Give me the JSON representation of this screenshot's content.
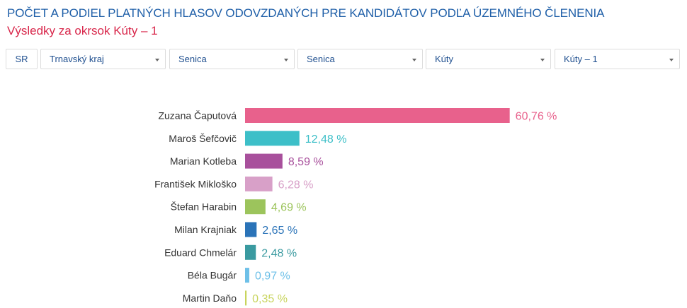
{
  "header": {
    "title": "POČET A PODIEL PLATNÝCH HLASOV ODOVZDANÝCH PRE KANDIDÁTOV PODĽA ÚZEMNÉHO ČLENENIA",
    "subtitle": "Výsledky za okrsok Kúty – 1"
  },
  "filters": {
    "country": "SR",
    "region": "Trnavský kraj",
    "district": "Senica",
    "municipality_area": "Senica",
    "municipality": "Kúty",
    "precinct": "Kúty – 1"
  },
  "chart_data": {
    "type": "bar",
    "orientation": "horizontal",
    "categories": [
      "Zuzana Čaputová",
      "Maroš Šefčovič",
      "Marian Kotleba",
      "František Mikloško",
      "Štefan Harabin",
      "Milan Krajniak",
      "Eduard Chmelár",
      "Béla Bugár",
      "Martin Daňo"
    ],
    "values": [
      60.76,
      12.48,
      8.59,
      6.28,
      4.69,
      2.65,
      2.48,
      0.97,
      0.35
    ],
    "value_labels": [
      "60,76 %",
      "12,48 %",
      "8,59 %",
      "6,28 %",
      "4,69 %",
      "2,65 %",
      "2,48 %",
      "0,97 %",
      "0,35 %"
    ],
    "colors": [
      "#e8618c",
      "#3dbfc8",
      "#a8509c",
      "#d8a0c8",
      "#9cc45c",
      "#2a73b8",
      "#3a9aa0",
      "#6ec0e8",
      "#c8d45c"
    ],
    "xlim": [
      0,
      100
    ],
    "grid": false,
    "legend": "none"
  }
}
